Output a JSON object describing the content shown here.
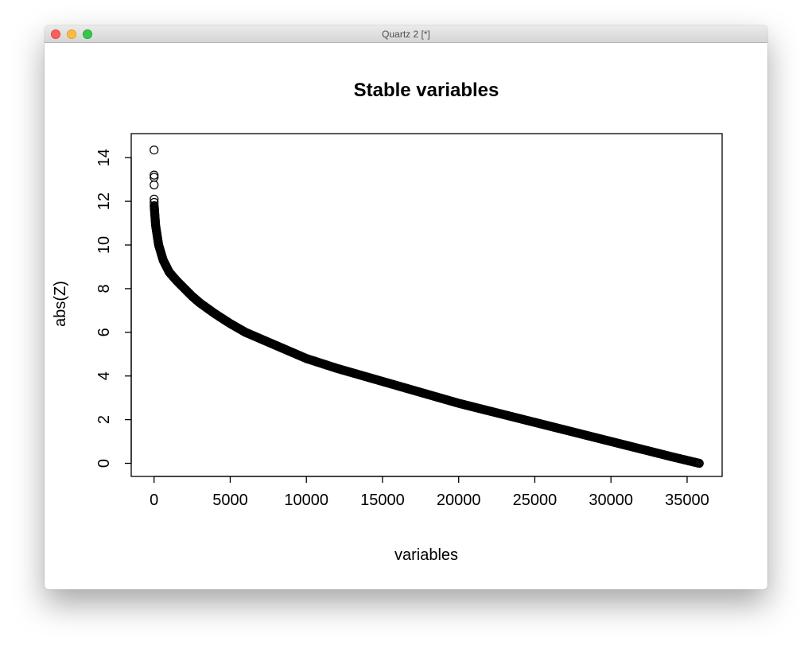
{
  "window": {
    "title": "Quartz 2 [*]"
  },
  "chart_data": {
    "type": "scatter",
    "title": "Stable variables",
    "xlabel": "variables",
    "ylabel": "abs(Z)",
    "xlim": [
      -1500,
      37300
    ],
    "ylim": [
      -0.6,
      15.1
    ],
    "xticks": [
      0,
      5000,
      10000,
      15000,
      20000,
      25000,
      30000,
      35000
    ],
    "yticks": [
      0,
      2,
      4,
      6,
      8,
      10,
      12,
      14
    ],
    "marker": "open-circle",
    "color": "#000000",
    "grid": false,
    "outliers": [
      {
        "x": 1,
        "y": 14.35
      },
      {
        "x": 2,
        "y": 13.2
      },
      {
        "x": 3,
        "y": 13.1
      },
      {
        "x": 4,
        "y": 12.75
      },
      {
        "x": 5,
        "y": 12.1
      },
      {
        "x": 6,
        "y": 11.95
      }
    ],
    "curve": [
      {
        "x": 7,
        "y": 11.8
      },
      {
        "x": 100,
        "y": 10.9
      },
      {
        "x": 300,
        "y": 10.0
      },
      {
        "x": 600,
        "y": 9.3
      },
      {
        "x": 1000,
        "y": 8.75
      },
      {
        "x": 1500,
        "y": 8.35
      },
      {
        "x": 2000,
        "y": 8.0
      },
      {
        "x": 2500,
        "y": 7.65
      },
      {
        "x": 3000,
        "y": 7.35
      },
      {
        "x": 4000,
        "y": 6.85
      },
      {
        "x": 5000,
        "y": 6.4
      },
      {
        "x": 6000,
        "y": 6.0
      },
      {
        "x": 7000,
        "y": 5.7
      },
      {
        "x": 8000,
        "y": 5.4
      },
      {
        "x": 9000,
        "y": 5.1
      },
      {
        "x": 10000,
        "y": 4.8
      },
      {
        "x": 12000,
        "y": 4.35
      },
      {
        "x": 14000,
        "y": 3.95
      },
      {
        "x": 16000,
        "y": 3.55
      },
      {
        "x": 18000,
        "y": 3.15
      },
      {
        "x": 20000,
        "y": 2.75
      },
      {
        "x": 22000,
        "y": 2.4
      },
      {
        "x": 24000,
        "y": 2.05
      },
      {
        "x": 26000,
        "y": 1.7
      },
      {
        "x": 28000,
        "y": 1.35
      },
      {
        "x": 30000,
        "y": 1.0
      },
      {
        "x": 32000,
        "y": 0.65
      },
      {
        "x": 34000,
        "y": 0.3
      },
      {
        "x": 35500,
        "y": 0.05
      },
      {
        "x": 35800,
        "y": 0.0
      }
    ]
  }
}
